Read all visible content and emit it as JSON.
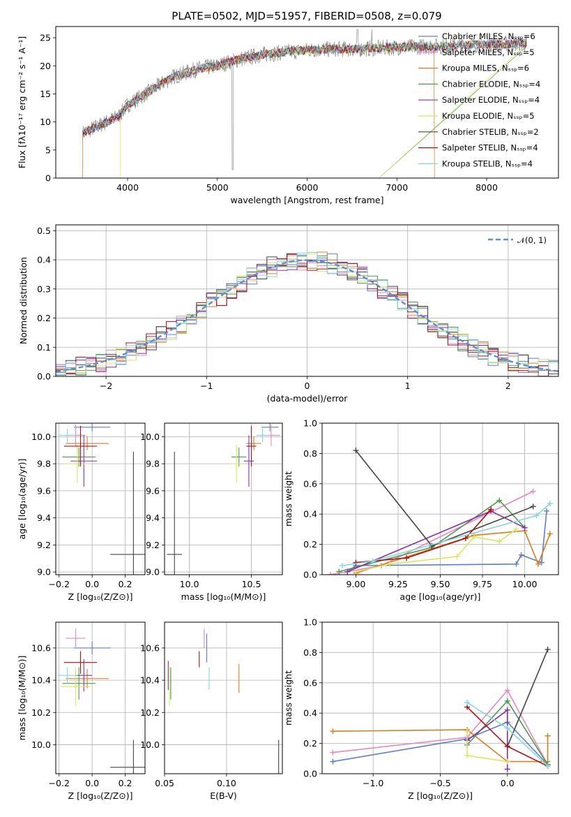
{
  "chart_data": [
    {
      "panel": "spectrum",
      "type": "line",
      "title": "PLATE=0502, MJD=51957, FIBERID=0508, z=0.079",
      "xlabel": "wavelength [Angstrom, rest frame]",
      "ylabel": "Flux [fλ10⁻¹⁷ erg cm⁻² s⁻¹ A⁻¹]",
      "xlim": [
        3200,
        8800
      ],
      "ylim": [
        0,
        27
      ],
      "xticks": [
        4000,
        5000,
        6000,
        7000,
        8000
      ],
      "yticks": [
        0,
        5,
        10,
        15,
        20,
        25
      ],
      "grid": false,
      "legend_position": "right",
      "series": [
        {
          "name": "Chabrier MILES, Nₛₛₚ=6",
          "color": "#5b7fd0"
        },
        {
          "name": "Salpeter MILES, Nₛₛₚ=5",
          "color": "#e888c0"
        },
        {
          "name": "Kroupa MILES, Nₛₛₚ=6",
          "color": "#e07b1c"
        },
        {
          "name": "Chabrier ELODIE, Nₛₛₚ=4",
          "color": "#4e9a4e"
        },
        {
          "name": "Salpeter ELODIE, Nₛₛₚ=4",
          "color": "#8f2bb0"
        },
        {
          "name": "Kroupa ELODIE, Nₛₛₚ=5",
          "color": "#d8e85a"
        },
        {
          "name": "Chabrier STELIB, Nₛₛₚ=2",
          "color": "#444444"
        },
        {
          "name": "Salpeter STELIB, Nₛₛₚ=4",
          "color": "#b01010"
        },
        {
          "name": "Kroupa STELIB, Nₛₛₚ=4",
          "color": "#7fd8e0"
        }
      ],
      "continuum": {
        "x": [
          3500,
          3700,
          3900,
          4000,
          4200,
          4500,
          4800,
          5000,
          5200,
          5500,
          5800,
          6000,
          6300,
          6600,
          7000,
          7500,
          8000,
          8500
        ],
        "y": [
          8,
          9.5,
          11,
          13,
          15,
          18,
          19.5,
          20,
          21,
          22,
          22.5,
          22.8,
          23,
          23,
          23.3,
          23.5,
          23.8,
          24
        ]
      }
    },
    {
      "panel": "residuals",
      "type": "histogram",
      "xlabel": "(data-model)/error",
      "ylabel": "Normed distribution",
      "xlim": [
        -2.5,
        2.5
      ],
      "ylim": [
        0,
        0.52
      ],
      "xticks": [
        -2,
        -1,
        0,
        1,
        2
      ],
      "yticks": [
        0.0,
        0.1,
        0.2,
        0.3,
        0.4,
        0.5
      ],
      "grid": true,
      "legend": [
        {
          "name": "𝒩(0, 1)",
          "color": "#5b8fd8",
          "style": "dashed"
        }
      ],
      "legend_position": "top-right",
      "bin_width": 0.1
    },
    {
      "panel": "age-vs-Z",
      "type": "errorbar",
      "xlabel": "Z [log₁₀(Z/Z⊙)]",
      "ylabel": "age  [log₁₀(age/yr)]",
      "xlim": [
        -0.22,
        0.32
      ],
      "ylim": [
        8.98,
        10.1
      ],
      "xticks": [
        -0.2,
        0.0,
        0.2
      ],
      "yticks": [
        9.0,
        9.2,
        9.4,
        9.6,
        9.8,
        10.0
      ],
      "grid": true
    },
    {
      "panel": "age-vs-mass",
      "type": "errorbar",
      "xlabel": "mass [log₁₀(M/M⊙)]",
      "ylabel": "",
      "xlim": [
        9.8,
        10.75
      ],
      "ylim": [
        8.98,
        10.1
      ],
      "xticks": [
        10.0,
        10.5
      ],
      "yticks": [
        9.0,
        9.2,
        9.4,
        9.6,
        9.8,
        10.0
      ],
      "grid": true
    },
    {
      "panel": "massweight-vs-age",
      "type": "line",
      "xlabel": "age  [log₁₀(age/yr)]",
      "ylabel": "mass weight",
      "xlim": [
        8.8,
        10.2
      ],
      "ylim": [
        0,
        1.0
      ],
      "xticks": [
        9.0,
        9.25,
        9.5,
        9.75,
        10.0
      ],
      "yticks": [
        0.0,
        0.2,
        0.4,
        0.6,
        0.8,
        1.0
      ],
      "grid": true
    },
    {
      "panel": "mass-vs-Z",
      "type": "errorbar",
      "xlabel": "Z [log₁₀(Z/Z⊙)]",
      "ylabel": "mass [log₁₀(M/M⊙)]",
      "xlim": [
        -0.22,
        0.32
      ],
      "ylim": [
        9.82,
        10.76
      ],
      "xticks": [
        -0.2,
        0.0,
        0.2
      ],
      "yticks": [
        10.0,
        10.2,
        10.4,
        10.6
      ],
      "grid": true
    },
    {
      "panel": "mass-vs-EBV",
      "type": "errorbar",
      "xlabel": "E(B-V)",
      "ylabel": "",
      "xlim": [
        0.05,
        0.145
      ],
      "ylim": [
        9.82,
        10.76
      ],
      "xticks": [
        0.05,
        0.1
      ],
      "yticks": [
        10.0,
        10.2,
        10.4,
        10.6
      ],
      "grid": true
    },
    {
      "panel": "massweight-vs-Z",
      "type": "line",
      "xlabel": "Z [log₁₀(Z/Z⊙)]",
      "ylabel": "mass weight",
      "xlim": [
        -1.38,
        0.38
      ],
      "ylim": [
        0,
        1.0
      ],
      "xticks": [
        -1.0,
        -0.5,
        0.0
      ],
      "yticks": [
        0.0,
        0.2,
        0.4,
        0.6,
        0.8,
        1.0
      ],
      "grid": true
    }
  ]
}
